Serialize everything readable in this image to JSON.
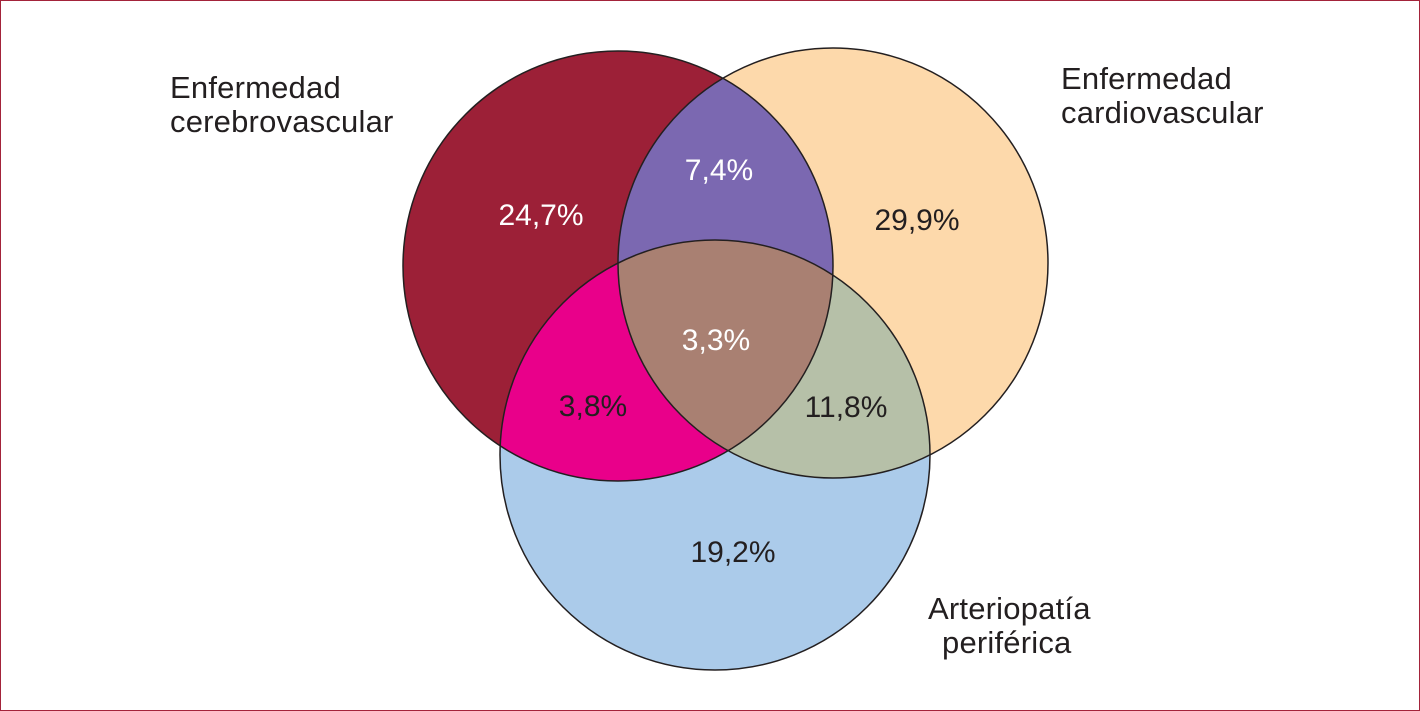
{
  "sets": [
    {
      "id": "cerebro",
      "label_lines": [
        "Enfermedad",
        "cerebrovascular"
      ],
      "color": "#9c2037"
    },
    {
      "id": "cardio",
      "label_lines": [
        "Enfermedad",
        "cardiovascular"
      ],
      "color": "#fdd9ab"
    },
    {
      "id": "arterio",
      "label_lines": [
        "Arteriopatía",
        "periférica"
      ],
      "color": "#abcbea"
    }
  ],
  "regions": {
    "cerebro_only": {
      "value": "24,7%",
      "color": "#9c2037",
      "text_color": "#ffffff"
    },
    "cardio_only": {
      "value": "29,9%",
      "color": "#fdd9ab",
      "text_color": "#231f20"
    },
    "arterio_only": {
      "value": "19,2%",
      "color": "#abcbea",
      "text_color": "#231f20"
    },
    "cerebro_cardio": {
      "value": "7,4%",
      "color": "#7b68b1",
      "text_color": "#ffffff"
    },
    "cerebro_arterio": {
      "value": "3,8%",
      "color": "#e9008a",
      "text_color": "#231f20"
    },
    "cardio_arterio": {
      "value": "11,8%",
      "color": "#b6c0a8",
      "text_color": "#231f20"
    },
    "all_three": {
      "value": "3,3%",
      "color": "#a98072",
      "text_color": "#ffffff"
    }
  }
}
